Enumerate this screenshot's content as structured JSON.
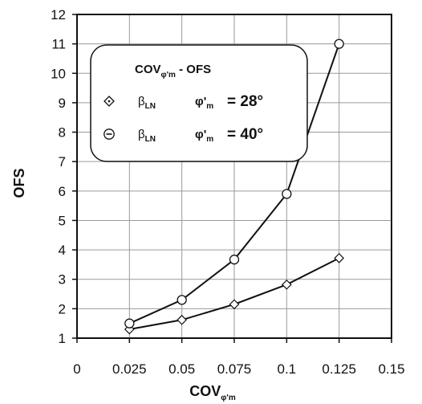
{
  "chart_data": {
    "type": "line",
    "title": "",
    "xlabel": "COV",
    "xlabel_sub": "φ'm",
    "ylabel": "OFS",
    "xlim": [
      0,
      0.15
    ],
    "ylim": [
      1,
      12
    ],
    "x_ticks": [
      "0",
      "0.025",
      "0.05",
      "0.075",
      "0.1",
      "0.125",
      "0.15"
    ],
    "y_ticks": [
      "1",
      "2",
      "3",
      "4",
      "5",
      "6",
      "7",
      "8",
      "9",
      "10",
      "11",
      "12"
    ],
    "grid": true,
    "legend": {
      "position": "top-left",
      "title_main": "COV",
      "title_sub": "φ'm",
      "title_rest": " - OFS",
      "entries": [
        {
          "beta": "β",
          "beta_sub": "LN",
          "phi": "φ'",
          "phi_sub": "m",
          "value": "= 28°",
          "marker": "diamond"
        },
        {
          "beta": "β",
          "beta_sub": "LN",
          "phi": "φ'",
          "phi_sub": "m",
          "value": "= 40°",
          "marker": "circle"
        }
      ]
    },
    "x": [
      0.025,
      0.05,
      0.075,
      0.1,
      0.125
    ],
    "series": [
      {
        "name": "βLN φ'm = 28°",
        "marker": "diamond",
        "values": [
          1.3,
          1.62,
          2.15,
          2.82,
          3.72
        ]
      },
      {
        "name": "βLN φ'm = 40°",
        "marker": "circle",
        "values": [
          1.5,
          2.3,
          3.67,
          5.9,
          11.0
        ]
      }
    ],
    "colors": {
      "line": "#111111",
      "grid": "#9a9a9a",
      "marker_fill": "#ffffff"
    }
  }
}
